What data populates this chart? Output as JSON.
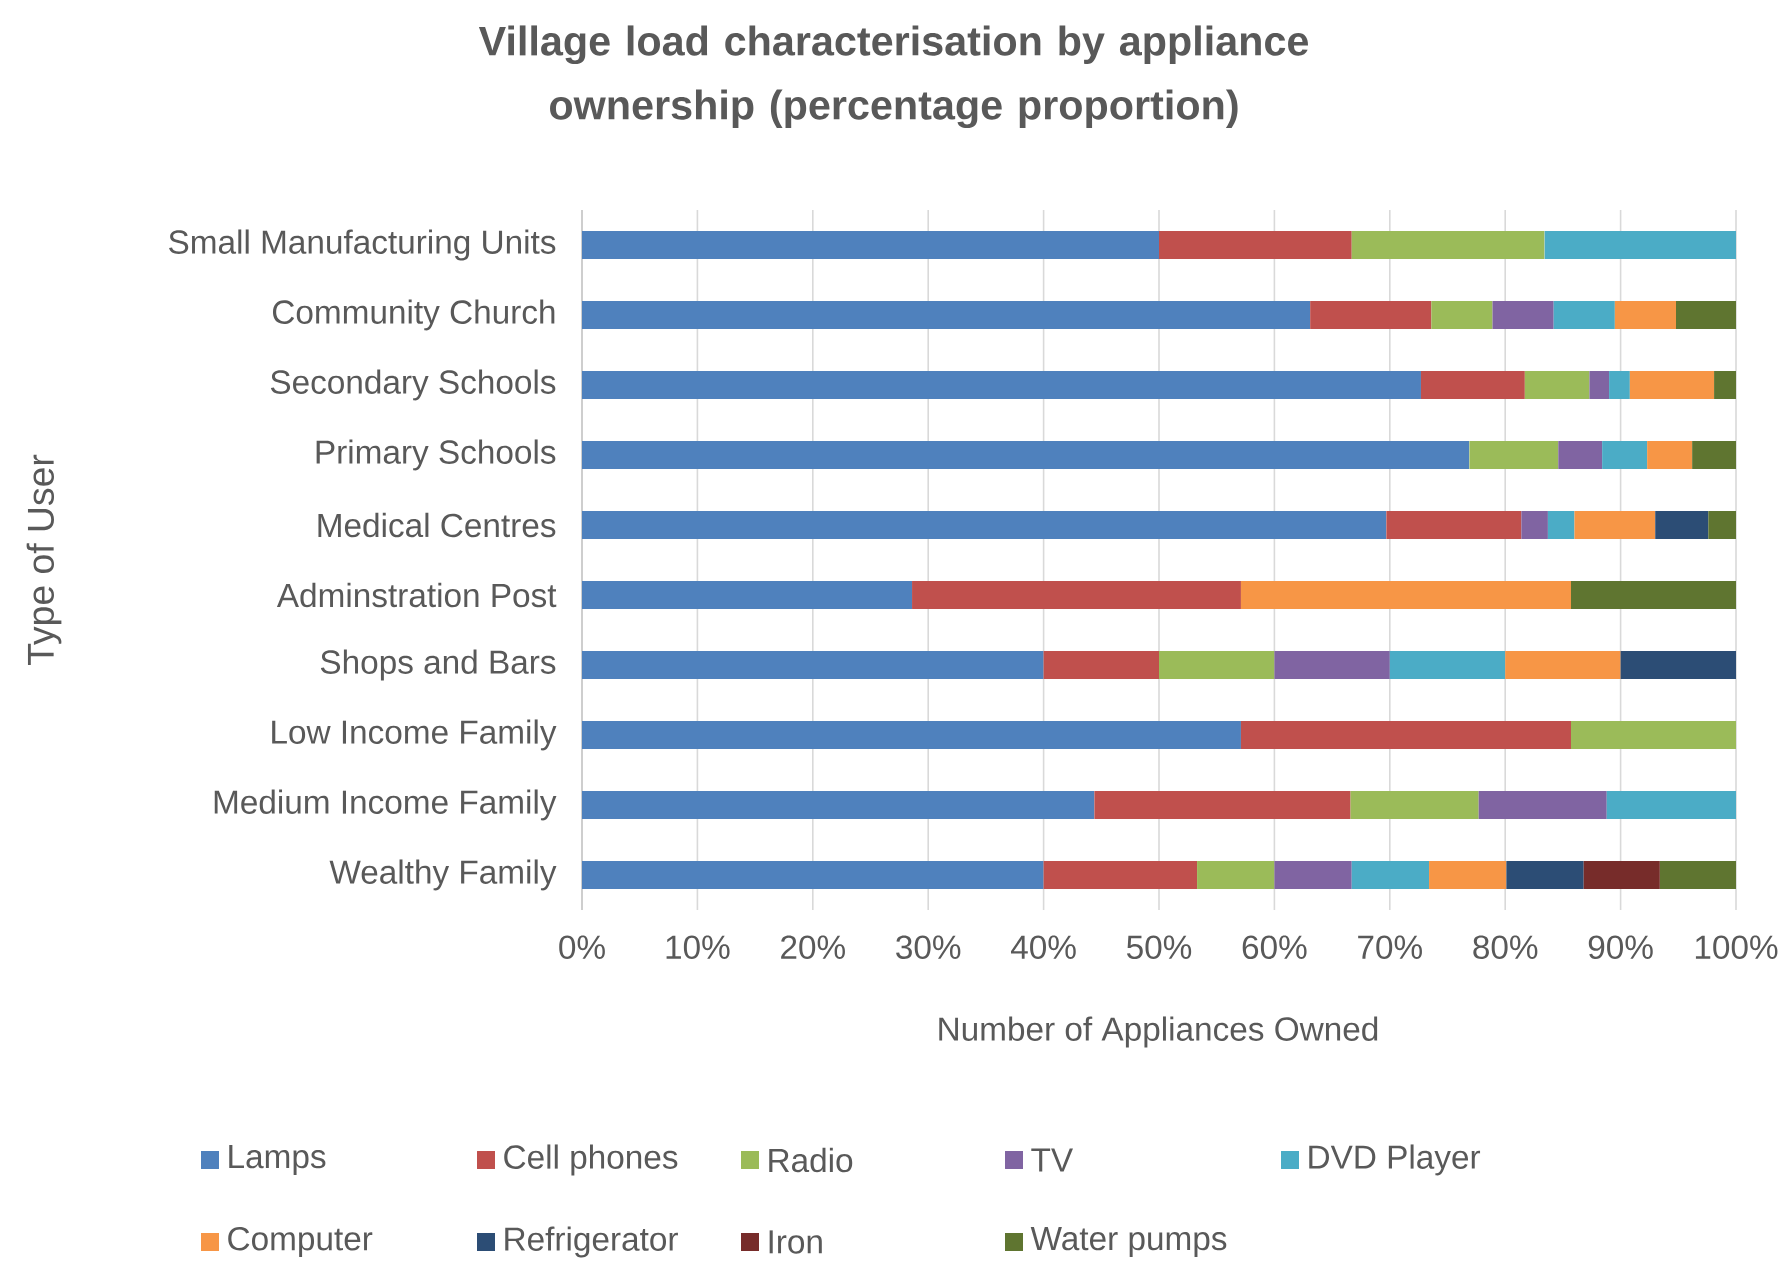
{
  "chart_data": {
    "type": "bar",
    "orientation": "horizontal",
    "stacked": true,
    "title": "Village load characterisation by appliance ownership (percentage proportion)",
    "xlabel": "Number of Appliances Owned",
    "ylabel": "Type of User",
    "categories": [
      "Small Manufacturing Units",
      "Community Church",
      "Secondary Schools",
      "Primary Schools",
      "Medical Centres",
      "Adminstration Post",
      "Shops and Bars",
      "Low Income Family",
      "Medium Income Family",
      "Wealthy Family"
    ],
    "series": [
      {
        "name": "Lamps",
        "color": "#4f81bd",
        "values": [
          50,
          63.1,
          72.7,
          76.9,
          69.7,
          28.6,
          40,
          57.1,
          44.4,
          40
        ]
      },
      {
        "name": "Cell phones",
        "color": "#c0504d",
        "values": [
          16.7,
          10.5,
          9.0,
          null,
          11.7,
          28.5,
          10,
          28.6,
          22.2,
          13.3
        ]
      },
      {
        "name": "Radio",
        "color": "#9bbb59",
        "values": [
          16.7,
          5.3,
          5.6,
          7.7,
          null,
          null,
          10,
          14.3,
          11.1,
          6.7
        ]
      },
      {
        "name": "TV",
        "color": "#8064a2",
        "values": [
          null,
          5.3,
          1.7,
          3.8,
          2.3,
          null,
          10,
          null,
          11.1,
          6.7
        ]
      },
      {
        "name": "DVD Player",
        "color": "#4bacc6",
        "values": [
          16.6,
          5.3,
          1.8,
          3.9,
          2.3,
          null,
          10,
          null,
          11.2,
          6.7
        ]
      },
      {
        "name": "Computer",
        "color": "#f79646",
        "values": [
          null,
          5.3,
          7.3,
          3.9,
          7.0,
          28.6,
          10,
          null,
          null,
          6.7
        ]
      },
      {
        "name": "Refrigerator",
        "color": "#2c4d75",
        "values": [
          null,
          null,
          null,
          null,
          4.6,
          null,
          10,
          null,
          null,
          6.7
        ]
      },
      {
        "name": "Iron",
        "color": "#772c2a",
        "values": [
          null,
          null,
          null,
          null,
          null,
          null,
          null,
          null,
          null,
          6.6
        ]
      },
      {
        "name": "Water pumps",
        "color": "#5f7530",
        "values": [
          null,
          5.2,
          1.9,
          3.8,
          2.4,
          14.3,
          null,
          null,
          null,
          6.6
        ]
      }
    ],
    "xlim": [
      0,
      100
    ],
    "xticks": [
      {
        "value": 0,
        "label": "0%"
      },
      {
        "value": 10,
        "label": "10%"
      },
      {
        "value": 20,
        "label": "20%"
      },
      {
        "value": 30,
        "label": "30%"
      },
      {
        "value": 40,
        "label": "40%"
      },
      {
        "value": 50,
        "label": "50%"
      },
      {
        "value": 60,
        "label": "60%"
      },
      {
        "value": 70,
        "label": "70%"
      },
      {
        "value": 80,
        "label": "80%"
      },
      {
        "value": 90,
        "label": "90%"
      },
      {
        "value": 100,
        "label": "100%"
      }
    ],
    "grid": "x",
    "legend": "bottom"
  }
}
